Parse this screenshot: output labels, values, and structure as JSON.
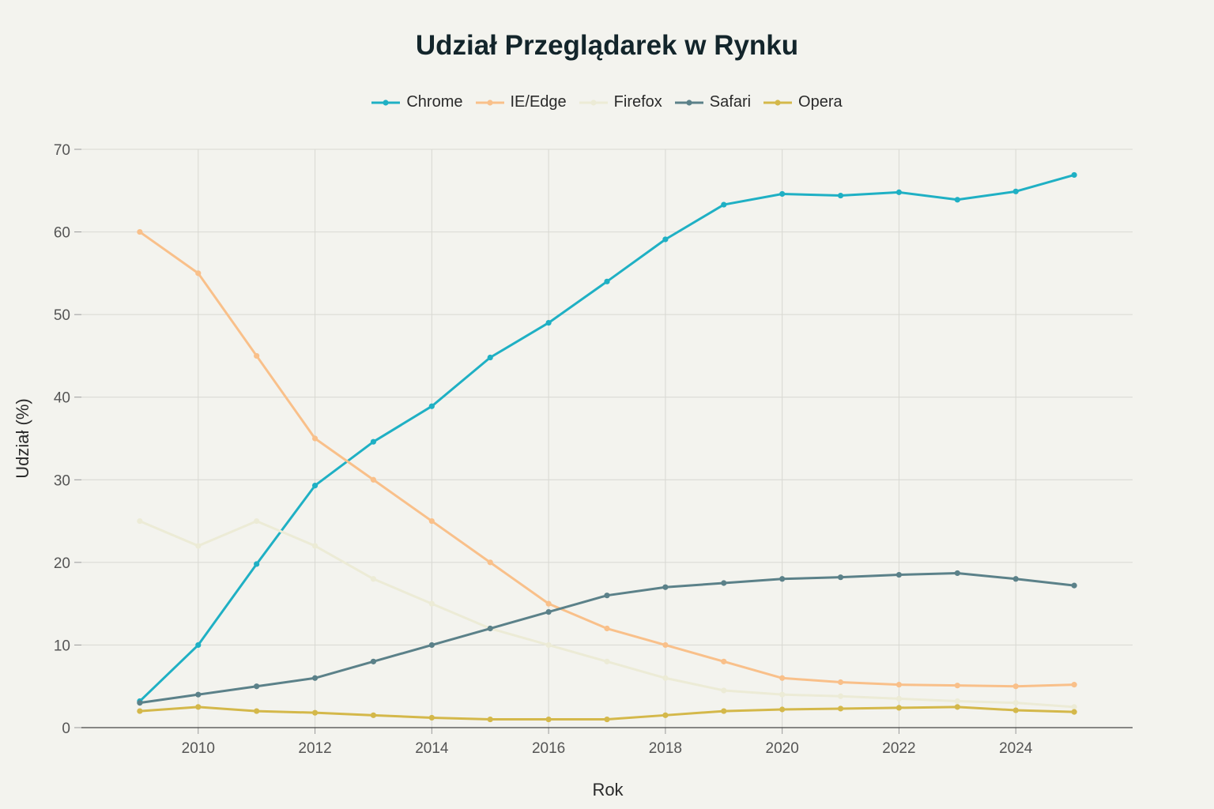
{
  "chart_data": {
    "type": "line",
    "title": "Udział Przeglądarek w Rynku",
    "xlabel": "Rok",
    "ylabel": "Udział (%)",
    "x": [
      2009,
      2010,
      2011,
      2012,
      2013,
      2014,
      2015,
      2016,
      2017,
      2018,
      2019,
      2020,
      2021,
      2022,
      2023,
      2024,
      2025
    ],
    "xticks": [
      2010,
      2012,
      2014,
      2016,
      2018,
      2020,
      2022,
      2024
    ],
    "yticks": [
      0,
      10,
      20,
      30,
      40,
      50,
      60,
      70
    ],
    "xlim": [
      2008,
      2026
    ],
    "ylim": [
      0,
      70
    ],
    "grid": true,
    "legend_position": "top-center",
    "series": [
      {
        "name": "Chrome",
        "color": "#1fb0c4",
        "values": [
          3.2,
          10,
          19.8,
          29.3,
          34.6,
          38.9,
          44.8,
          49,
          54,
          59.1,
          63.3,
          64.6,
          64.4,
          64.8,
          63.9,
          64.9,
          66.9
        ]
      },
      {
        "name": "IE/Edge",
        "color": "#f9c08a",
        "values": [
          60,
          55,
          45,
          35,
          30,
          25,
          20,
          15,
          12,
          10,
          8,
          6,
          5.5,
          5.2,
          5.1,
          5.0,
          5.2
        ]
      },
      {
        "name": "Firefox",
        "color": "#ecebd6",
        "values": [
          25,
          22,
          25,
          22,
          18,
          15,
          12,
          10,
          8,
          6,
          4.5,
          4,
          3.8,
          3.5,
          3.2,
          3.0,
          2.5
        ]
      },
      {
        "name": "Safari",
        "color": "#5b8189",
        "values": [
          3,
          4,
          5,
          6,
          8,
          10,
          12,
          14,
          16,
          17,
          17.5,
          18,
          18.2,
          18.5,
          18.7,
          18,
          17.2
        ]
      },
      {
        "name": "Opera",
        "color": "#d4b84a",
        "values": [
          2,
          2.5,
          2,
          1.8,
          1.5,
          1.2,
          1,
          1,
          1,
          1.5,
          2,
          2.2,
          2.3,
          2.4,
          2.5,
          2.1,
          1.9
        ]
      }
    ]
  }
}
